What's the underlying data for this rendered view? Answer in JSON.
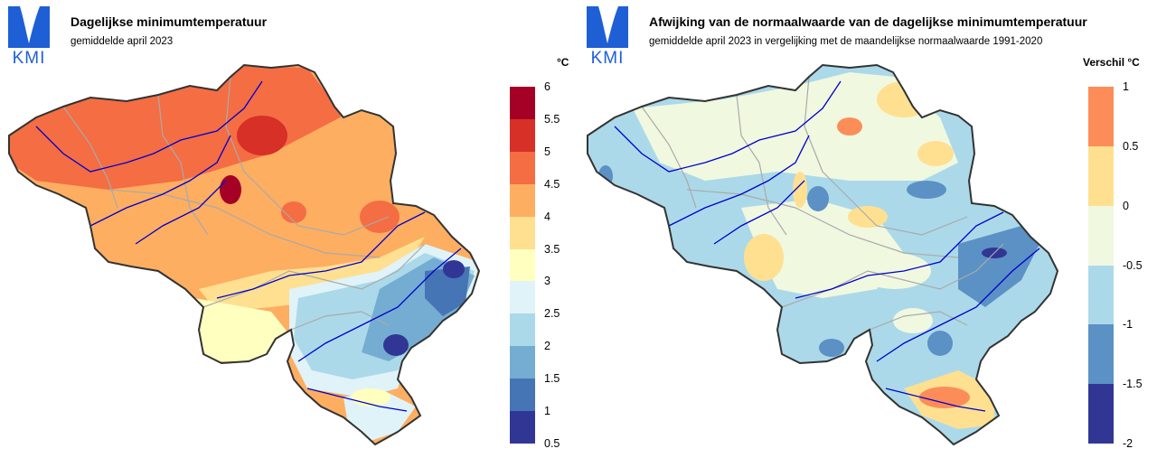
{
  "logo": {
    "text": "KMI"
  },
  "panels": [
    {
      "title": "Dagelijkse minimumtemperatuur",
      "subtitle": "gemiddelde april 2023",
      "legend": {
        "unit": "°C",
        "ticks": [
          "6",
          "5.5",
          "5",
          "4.5",
          "4",
          "3.5",
          "3",
          "2.5",
          "2",
          "1.5",
          "1",
          "0.5"
        ],
        "colors": [
          "#a50026",
          "#d73027",
          "#f46d43",
          "#fdae61",
          "#fee090",
          "#ffffbf",
          "#e0f3f8",
          "#abd9e9",
          "#74add1",
          "#4575b4",
          "#313695"
        ]
      }
    },
    {
      "title": "Afwijking van de normaalwaarde van de dagelijkse minimumtemperatuur",
      "subtitle": "gemiddelde april 2023 in vergelijking met de maandelijkse normaalwaarde 1991-2020",
      "legend": {
        "unit": "Verschil °C",
        "ticks": [
          "1",
          "0.5",
          "0",
          "-0.5",
          "-1",
          "-1.5",
          "-2"
        ],
        "colors": [
          "#fc8d59",
          "#fee090",
          "#f0f8e0",
          "#abd9e9",
          "#5b91c4",
          "#313695"
        ]
      }
    }
  ],
  "map_colors": {
    "border": "#333333",
    "rivers": "#0000cc",
    "provinces": "#aaaaaa"
  }
}
